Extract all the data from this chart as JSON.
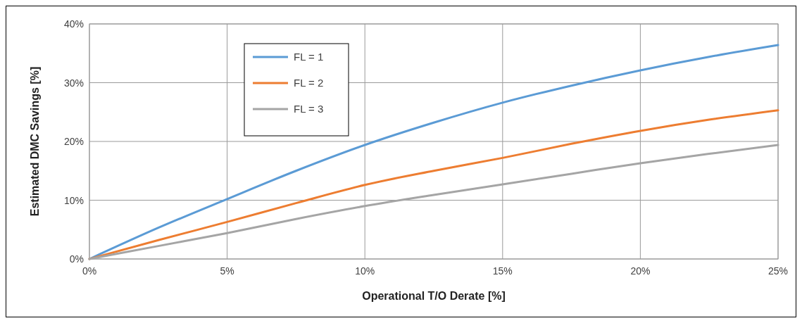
{
  "chart_data": {
    "type": "line",
    "xlabel": "Operational T/O Derate [%]",
    "ylabel": "Estimated DMC Savings [%]",
    "x": [
      0,
      2.5,
      5,
      7.5,
      10,
      12.5,
      15,
      17.5,
      20,
      22.5,
      25
    ],
    "series": [
      {
        "name": "FL = 1",
        "color": "#5b9bd5",
        "values": [
          0,
          5.3,
          10.2,
          15,
          19.4,
          23.2,
          26.6,
          29.5,
          32.1,
          34.4,
          36.4
        ]
      },
      {
        "name": "FL = 2",
        "color": "#ed7d31",
        "values": [
          0,
          3.2,
          6.3,
          9.5,
          12.6,
          15,
          17.2,
          19.6,
          21.8,
          23.7,
          25.3
        ]
      },
      {
        "name": "FL = 3",
        "color": "#a5a5a5",
        "values": [
          0,
          2.2,
          4.4,
          6.8,
          9,
          10.9,
          12.7,
          14.5,
          16.3,
          17.9,
          19.4
        ]
      }
    ],
    "xlim": [
      0,
      25
    ],
    "ylim": [
      0,
      40
    ],
    "xticks": [
      {
        "value": 0,
        "label": "0%"
      },
      {
        "value": 5,
        "label": "5%"
      },
      {
        "value": 10,
        "label": "10%"
      },
      {
        "value": 15,
        "label": "15%"
      },
      {
        "value": 20,
        "label": "20%"
      },
      {
        "value": 25,
        "label": "25%"
      }
    ],
    "yticks": [
      {
        "value": 0,
        "label": "0%"
      },
      {
        "value": 10,
        "label": "10%"
      },
      {
        "value": 20,
        "label": "20%"
      },
      {
        "value": 30,
        "label": "30%"
      },
      {
        "value": 40,
        "label": "40%"
      }
    ],
    "grid": true,
    "legend": "top left",
    "line_style": "solid",
    "marker": "none"
  }
}
